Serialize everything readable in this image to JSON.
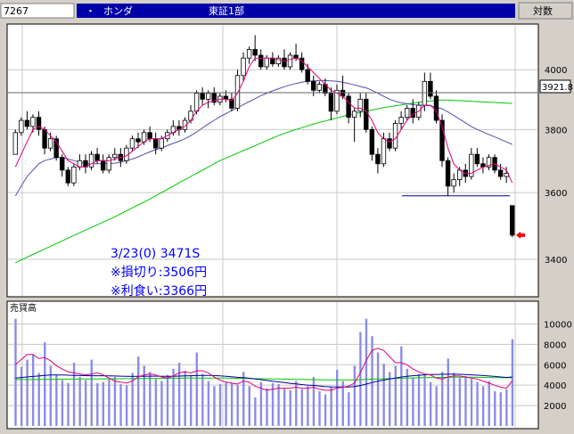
{
  "header": {
    "code": "7267",
    "bullet": "・",
    "name": "ホンダ",
    "market": "東証1部",
    "scale_mode": "対数"
  },
  "colors": {
    "header_bg": "#0000a8",
    "candle_up": "#ffffff",
    "candle_down": "#000000",
    "ma_short": "#e0007a",
    "ma_mid": "#5050b0",
    "ma_long": "#00c800",
    "volume_bar": "#8c8ce8",
    "annotation": "#0000ff",
    "signal_arrow": "#ff0000"
  },
  "price_axis": {
    "ticks": [
      "4000",
      "3800",
      "3600",
      "3400"
    ],
    "current": "3921.8"
  },
  "annotation": {
    "line1": "3/23(0) 3471S",
    "line2": "※損切り:3506円",
    "line3": "※利食い:3366円"
  },
  "support_line_value": 3590,
  "volume": {
    "label": "売買高",
    "ticks": [
      "10000",
      "8000",
      "6000",
      "4000",
      "2000"
    ]
  },
  "chart_data": {
    "type": "candlestick",
    "price_range": [
      3300,
      4150
    ],
    "scale": "log",
    "candles": [
      [
        3720,
        3800,
        3720,
        3790
      ],
      [
        3790,
        3840,
        3780,
        3830
      ],
      [
        3830,
        3860,
        3800,
        3810
      ],
      [
        3810,
        3850,
        3790,
        3840
      ],
      [
        3840,
        3860,
        3780,
        3800
      ],
      [
        3800,
        3810,
        3720,
        3740
      ],
      [
        3740,
        3790,
        3730,
        3770
      ],
      [
        3770,
        3780,
        3700,
        3710
      ],
      [
        3710,
        3720,
        3650,
        3670
      ],
      [
        3670,
        3680,
        3620,
        3630
      ],
      [
        3630,
        3690,
        3620,
        3680
      ],
      [
        3680,
        3720,
        3670,
        3700
      ],
      [
        3700,
        3720,
        3660,
        3680
      ],
      [
        3680,
        3730,
        3670,
        3720
      ],
      [
        3720,
        3740,
        3690,
        3700
      ],
      [
        3700,
        3720,
        3660,
        3670
      ],
      [
        3670,
        3720,
        3660,
        3710
      ],
      [
        3710,
        3740,
        3700,
        3720
      ],
      [
        3720,
        3740,
        3680,
        3700
      ],
      [
        3700,
        3750,
        3690,
        3740
      ],
      [
        3740,
        3780,
        3730,
        3770
      ],
      [
        3770,
        3790,
        3740,
        3760
      ],
      [
        3760,
        3800,
        3750,
        3790
      ],
      [
        3790,
        3810,
        3760,
        3770
      ],
      [
        3770,
        3790,
        3720,
        3740
      ],
      [
        3740,
        3780,
        3730,
        3770
      ],
      [
        3770,
        3800,
        3760,
        3790
      ],
      [
        3790,
        3830,
        3780,
        3810
      ],
      [
        3810,
        3830,
        3780,
        3800
      ],
      [
        3800,
        3840,
        3790,
        3830
      ],
      [
        3830,
        3880,
        3820,
        3860
      ],
      [
        3860,
        3930,
        3850,
        3920
      ],
      [
        3920,
        3940,
        3880,
        3900
      ],
      [
        3900,
        3930,
        3870,
        3920
      ],
      [
        3920,
        3940,
        3880,
        3890
      ],
      [
        3890,
        3920,
        3880,
        3910
      ],
      [
        3910,
        3930,
        3890,
        3900
      ],
      [
        3900,
        3920,
        3860,
        3870
      ],
      [
        3870,
        4000,
        3860,
        3980
      ],
      [
        3980,
        4060,
        3960,
        4040
      ],
      [
        4040,
        4080,
        4020,
        4070
      ],
      [
        4070,
        4120,
        4030,
        4050
      ],
      [
        4050,
        4070,
        4000,
        4010
      ],
      [
        4010,
        4050,
        4000,
        4040
      ],
      [
        4040,
        4060,
        4010,
        4020
      ],
      [
        4020,
        4050,
        4010,
        4040
      ],
      [
        4040,
        4070,
        4000,
        4010
      ],
      [
        4010,
        4060,
        4000,
        4050
      ],
      [
        4050,
        4090,
        4030,
        4040
      ],
      [
        4040,
        4060,
        3990,
        4000
      ],
      [
        4000,
        4020,
        3950,
        3960
      ],
      [
        3960,
        3980,
        3910,
        3930
      ],
      [
        3930,
        3960,
        3920,
        3950
      ],
      [
        3950,
        3970,
        3910,
        3920
      ],
      [
        3920,
        3940,
        3830,
        3860
      ],
      [
        3860,
        3950,
        3850,
        3930
      ],
      [
        3930,
        3980,
        3900,
        3910
      ],
      [
        3910,
        3920,
        3820,
        3840
      ],
      [
        3840,
        3870,
        3760,
        3860
      ],
      [
        3860,
        3920,
        3840,
        3900
      ],
      [
        3900,
        3920,
        3790,
        3800
      ],
      [
        3800,
        3810,
        3700,
        3720
      ],
      [
        3720,
        3740,
        3660,
        3690
      ],
      [
        3690,
        3790,
        3680,
        3770
      ],
      [
        3770,
        3790,
        3730,
        3740
      ],
      [
        3740,
        3830,
        3730,
        3820
      ],
      [
        3820,
        3860,
        3800,
        3840
      ],
      [
        3840,
        3880,
        3830,
        3870
      ],
      [
        3870,
        3900,
        3820,
        3840
      ],
      [
        3840,
        3890,
        3830,
        3880
      ],
      [
        3880,
        3990,
        3860,
        3960
      ],
      [
        3960,
        3990,
        3900,
        3910
      ],
      [
        3910,
        3930,
        3820,
        3830
      ],
      [
        3830,
        3850,
        3680,
        3700
      ],
      [
        3700,
        3710,
        3590,
        3620
      ],
      [
        3620,
        3660,
        3600,
        3640
      ],
      [
        3640,
        3680,
        3620,
        3670
      ],
      [
        3670,
        3690,
        3630,
        3650
      ],
      [
        3650,
        3740,
        3640,
        3720
      ],
      [
        3720,
        3740,
        3680,
        3690
      ],
      [
        3690,
        3710,
        3660,
        3680
      ],
      [
        3680,
        3720,
        3670,
        3710
      ],
      [
        3710,
        3720,
        3660,
        3670
      ],
      [
        3670,
        3690,
        3640,
        3650
      ],
      [
        3650,
        3680,
        3630,
        3660
      ],
      [
        3560,
        3560,
        3465,
        3471
      ]
    ],
    "ma_short": [
      3680,
      3720,
      3760,
      3800,
      3810,
      3800,
      3780,
      3760,
      3730,
      3700,
      3690,
      3680,
      3680,
      3690,
      3700,
      3700,
      3700,
      3705,
      3710,
      3715,
      3730,
      3745,
      3760,
      3770,
      3770,
      3770,
      3780,
      3790,
      3800,
      3810,
      3830,
      3860,
      3880,
      3890,
      3895,
      3900,
      3900,
      3895,
      3920,
      3960,
      4010,
      4040,
      4040,
      4040,
      4040,
      4035,
      4030,
      4035,
      4040,
      4030,
      4010,
      3990,
      3970,
      3950,
      3930,
      3920,
      3910,
      3890,
      3870,
      3870,
      3860,
      3830,
      3790,
      3770,
      3760,
      3770,
      3800,
      3830,
      3850,
      3860,
      3880,
      3880,
      3860,
      3810,
      3740,
      3690,
      3670,
      3660,
      3660,
      3670,
      3680,
      3685,
      3690,
      3680,
      3670,
      3630
    ],
    "ma_mid": [
      3590,
      3620,
      3650,
      3670,
      3690,
      3700,
      3705,
      3710,
      3710,
      3705,
      3700,
      3695,
      3690,
      3690,
      3690,
      3690,
      3690,
      3692,
      3695,
      3700,
      3705,
      3712,
      3720,
      3728,
      3735,
      3740,
      3748,
      3755,
      3762,
      3770,
      3780,
      3792,
      3805,
      3818,
      3830,
      3842,
      3852,
      3862,
      3872,
      3882,
      3892,
      3902,
      3912,
      3920,
      3928,
      3935,
      3942,
      3948,
      3953,
      3957,
      3960,
      3962,
      3963,
      3963,
      3962,
      3960,
      3957,
      3953,
      3948,
      3943,
      3938,
      3930,
      3920,
      3910,
      3900,
      3893,
      3888,
      3885,
      3882,
      3880,
      3880,
      3878,
      3874,
      3868,
      3858,
      3846,
      3834,
      3822,
      3810,
      3800,
      3792,
      3784,
      3776,
      3768,
      3760,
      3752
    ],
    "ma_long": [
      3390,
      3398,
      3406,
      3414,
      3422,
      3430,
      3438,
      3446,
      3454,
      3462,
      3470,
      3478,
      3486,
      3494,
      3502,
      3510,
      3518,
      3526,
      3535,
      3544,
      3553,
      3562,
      3571,
      3580,
      3590,
      3600,
      3610,
      3620,
      3630,
      3640,
      3650,
      3660,
      3670,
      3680,
      3690,
      3700,
      3708,
      3716,
      3724,
      3732,
      3740,
      3748,
      3756,
      3764,
      3772,
      3780,
      3787,
      3794,
      3800,
      3806,
      3812,
      3818,
      3823,
      3828,
      3833,
      3838,
      3843,
      3848,
      3852,
      3856,
      3860,
      3864,
      3868,
      3872,
      3875,
      3878,
      3881,
      3884,
      3887,
      3890,
      3892,
      3894,
      3896,
      3897,
      3897,
      3896,
      3895,
      3894,
      3893,
      3892,
      3891,
      3890,
      3889,
      3888,
      3887,
      3886
    ],
    "volume_range": [
      0,
      11000
    ],
    "volume": [
      10500,
      5800,
      6500,
      7000,
      5200,
      8200,
      5900,
      5000,
      4500,
      4200,
      6200,
      4800,
      4500,
      6500,
      4200,
      4300,
      4600,
      4800,
      4100,
      4000,
      5200,
      6800,
      5900,
      5300,
      4600,
      4400,
      5000,
      5600,
      6200,
      5400,
      4900,
      7200,
      5100,
      4400,
      3900,
      4100,
      4300,
      4200,
      4000,
      5300,
      3900,
      2800,
      4300,
      3700,
      4200,
      4100,
      3700,
      3500,
      4400,
      3600,
      3900,
      4800,
      3400,
      3100,
      3800,
      5500,
      4400,
      3300,
      5900,
      9200,
      10500,
      8800,
      7200,
      6100,
      5300,
      5900,
      7800,
      5600,
      4700,
      5100,
      5000,
      4300,
      3900,
      5300,
      6600,
      5200,
      4700,
      4900,
      4600,
      4300,
      3900,
      4400,
      3400,
      3300,
      3600,
      8500
    ],
    "vol_ma_short": [
      6000,
      6500,
      7000,
      7000,
      6600,
      6700,
      6400,
      5900,
      5600,
      5300,
      5200,
      5100,
      5000,
      5100,
      5200,
      5000,
      4700,
      4400,
      4300,
      4200,
      4400,
      4800,
      5000,
      5100,
      5000,
      4800,
      4700,
      4900,
      5200,
      5300,
      5200,
      5400,
      5400,
      5200,
      4800,
      4500,
      4300,
      4200,
      4100,
      4400,
      4300,
      3900,
      3700,
      3500,
      3600,
      3700,
      3700,
      3700,
      3800,
      3700,
      3700,
      3800,
      3600,
      3500,
      3500,
      3700,
      3800,
      3900,
      4200,
      5200,
      6400,
      7400,
      7600,
      7400,
      6800,
      6200,
      6200,
      6000,
      5600,
      5300,
      5100,
      5000,
      4700,
      4600,
      4800,
      4900,
      4900,
      4800,
      4700,
      4600,
      4400,
      4200,
      4000,
      3800,
      3700,
      4400
    ],
    "vol_ma_mid": [
      4700,
      4750,
      4800,
      4850,
      4900,
      4950,
      5000,
      5000,
      5000,
      4980,
      4960,
      4940,
      4930,
      4920,
      4920,
      4920,
      4910,
      4900,
      4880,
      4860,
      4850,
      4860,
      4870,
      4880,
      4880,
      4870,
      4860,
      4870,
      4890,
      4910,
      4920,
      4940,
      4960,
      4960,
      4940,
      4910,
      4870,
      4820,
      4770,
      4730,
      4680,
      4610,
      4540,
      4460,
      4390,
      4320,
      4250,
      4180,
      4120,
      4060,
      4010,
      3970,
      3920,
      3870,
      3830,
      3820,
      3820,
      3820,
      3860,
      3960,
      4100,
      4250,
      4380,
      4500,
      4600,
      4690,
      4790,
      4870,
      4920,
      4970,
      5010,
      5040,
      5050,
      5060,
      5070,
      5070,
      5060,
      5040,
      5010,
      4980,
      4940,
      4900,
      4850,
      4800,
      4760,
      4800
    ],
    "vol_ma_long": [
      4550,
      4550,
      4550,
      4560,
      4560,
      4570,
      4570,
      4580,
      4580,
      4590,
      4590,
      4600,
      4600,
      4610,
      4610,
      4620,
      4620,
      4630,
      4630,
      4640,
      4640,
      4650,
      4650,
      4660,
      4660,
      4670,
      4670,
      4680,
      4680,
      4690,
      4690,
      4700,
      4700,
      4700,
      4700,
      4700,
      4690,
      4680,
      4670,
      4660,
      4650,
      4640,
      4630,
      4620,
      4610,
      4600,
      4590,
      4580,
      4570,
      4560,
      4550,
      4540,
      4530,
      4520,
      4510,
      4510,
      4510,
      4510,
      4520,
      4540,
      4560,
      4580,
      4600,
      4620,
      4640,
      4660,
      4680,
      4700,
      4710,
      4720,
      4730,
      4740,
      4750,
      4760,
      4770,
      4780,
      4780,
      4780,
      4780,
      4770,
      4760,
      4750,
      4740,
      4730,
      4720,
      4720
    ]
  }
}
